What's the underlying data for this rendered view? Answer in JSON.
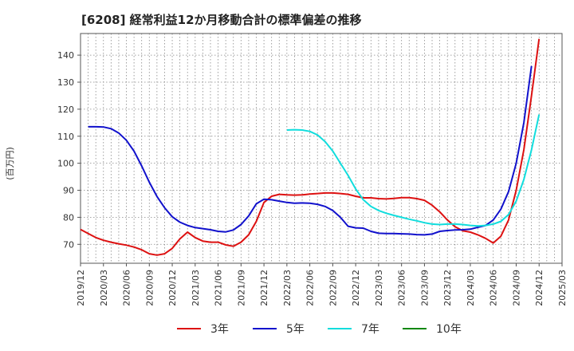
{
  "chart_data": {
    "type": "line",
    "title": "[6208]  経常利益12か月移動合計の標準偏差の推移",
    "ylabel": "(百万円)",
    "xlabel": "",
    "ylim": [
      63,
      148
    ],
    "yticks": [
      70,
      80,
      90,
      100,
      110,
      120,
      130,
      140
    ],
    "x_start": "2019/12",
    "x_end": "2025/03",
    "x_ticks": [
      "2019/12",
      "2020/03",
      "2020/06",
      "2020/09",
      "2020/12",
      "2021/03",
      "2021/06",
      "2021/09",
      "2021/12",
      "2022/03",
      "2022/06",
      "2022/09",
      "2022/12",
      "2023/03",
      "2023/06",
      "2023/09",
      "2023/12",
      "2024/03",
      "2024/06",
      "2024/09",
      "2024/12",
      "2025/03"
    ],
    "grid": true,
    "series": [
      {
        "name": "3年",
        "color": "#dd1111",
        "start": "2019/12",
        "values": [
          75.5,
          74,
          72.5,
          71.5,
          70.8,
          70.2,
          69.7,
          69,
          68,
          66.5,
          66,
          66.5,
          68.5,
          72,
          74.5,
          72.5,
          71.2,
          70.8,
          70.8,
          69.8,
          69.3,
          70.8,
          73.5,
          78.5,
          85.5,
          87.8,
          88.5,
          88.3,
          88.2,
          88.3,
          88.6,
          88.8,
          89,
          89,
          88.8,
          88.5,
          87.8,
          87.2,
          87.2,
          86.9,
          86.8,
          87,
          87.3,
          87.3,
          86.9,
          86.3,
          84.5,
          82,
          79,
          76.5,
          75,
          74.5,
          73.5,
          72.2,
          70.5,
          73,
          79,
          90,
          105,
          125,
          146
        ]
      },
      {
        "name": "5年",
        "color": "#1111cc",
        "start": "2020/01",
        "values": [
          113.5,
          113.5,
          113.4,
          112.8,
          111.2,
          108.5,
          104.5,
          99,
          93,
          87.7,
          83.5,
          80.2,
          78.2,
          77,
          76.2,
          75.8,
          75.4,
          74.8,
          74.6,
          75.3,
          77.3,
          80.5,
          85,
          86.7,
          86.5,
          86,
          85.5,
          85.2,
          85.3,
          85.2,
          84.8,
          84,
          82.5,
          80,
          76.7,
          76.1,
          76,
          74.8,
          74.1,
          74,
          74,
          73.9,
          73.8,
          73.6,
          73.5,
          73.8,
          74.8,
          75.1,
          75.3,
          75.4,
          75.6,
          76.3,
          77,
          79,
          83,
          89.5,
          100,
          115,
          136
        ]
      },
      {
        "name": "7年",
        "color": "#11dddd",
        "start": "2022/03",
        "values": [
          112.3,
          112.4,
          112.3,
          111.8,
          110.5,
          108,
          104.5,
          100,
          95.5,
          90.5,
          86.5,
          84,
          82.5,
          81.5,
          80.7,
          80,
          79.3,
          78.7,
          78,
          77.5,
          77.3,
          77.5,
          77.5,
          77.3,
          77,
          76.8,
          77,
          77.5,
          78.5,
          81,
          86,
          94,
          105,
          118
        ]
      },
      {
        "name": "10年",
        "color": "#118811",
        "start": "2024/12",
        "values": []
      }
    ],
    "legend": "bottom"
  }
}
